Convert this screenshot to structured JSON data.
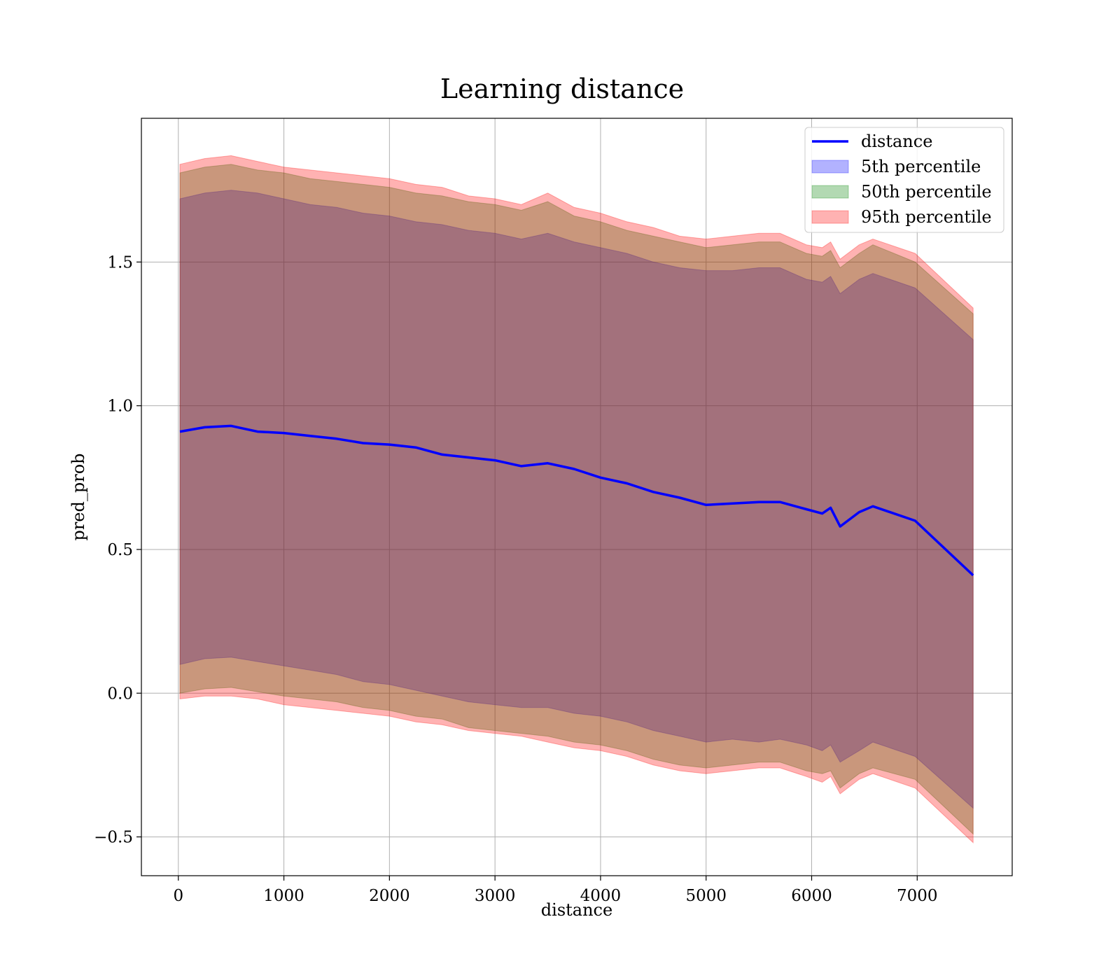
{
  "chart_data": {
    "type": "line",
    "title": "Learning distance",
    "xlabel": "distance",
    "ylabel": "pred_prob",
    "xlim": [
      -350,
      7900
    ],
    "ylim": [
      -0.635,
      2.0
    ],
    "xticks": [
      0,
      1000,
      2000,
      3000,
      4000,
      5000,
      6000,
      7000
    ],
    "xtick_labels": [
      "0",
      "1000",
      "2000",
      "3000",
      "4000",
      "5000",
      "6000",
      "7000"
    ],
    "yticks": [
      -0.5,
      0.0,
      0.5,
      1.0,
      1.5
    ],
    "ytick_labels": [
      "−0.5",
      "0.0",
      "0.5",
      "1.0",
      "1.5"
    ],
    "grid": true,
    "legend_position": "top-right",
    "legend": [
      "distance",
      "5th percentile",
      "50th percentile",
      "95th percentile"
    ],
    "x": [
      15,
      250,
      500,
      750,
      1000,
      1250,
      1500,
      1750,
      2000,
      2250,
      2500,
      2750,
      3000,
      3250,
      3500,
      3750,
      4000,
      4250,
      4500,
      4750,
      5000,
      5250,
      5500,
      5700,
      5950,
      6100,
      6180,
      6270,
      6450,
      6580,
      6980,
      7530
    ],
    "series": [
      {
        "name": "distance",
        "kind": "line",
        "color": "#0000ff",
        "values": [
          0.91,
          0.925,
          0.93,
          0.91,
          0.905,
          0.895,
          0.885,
          0.87,
          0.865,
          0.855,
          0.83,
          0.82,
          0.81,
          0.79,
          0.8,
          0.78,
          0.75,
          0.73,
          0.7,
          0.68,
          0.655,
          0.66,
          0.665,
          0.665,
          0.64,
          0.625,
          0.645,
          0.58,
          0.63,
          0.65,
          0.6,
          0.41
        ]
      },
      {
        "name": "5th percentile",
        "kind": "band",
        "color": "#0000ff",
        "lower": [
          0.1,
          0.12,
          0.125,
          0.11,
          0.095,
          0.08,
          0.065,
          0.04,
          0.03,
          0.01,
          -0.01,
          -0.03,
          -0.04,
          -0.05,
          -0.05,
          -0.07,
          -0.08,
          -0.1,
          -0.13,
          -0.15,
          -0.17,
          -0.16,
          -0.17,
          -0.16,
          -0.18,
          -0.2,
          -0.18,
          -0.24,
          -0.2,
          -0.17,
          -0.22,
          -0.4
        ],
        "upper": [
          1.72,
          1.74,
          1.75,
          1.74,
          1.72,
          1.7,
          1.69,
          1.67,
          1.66,
          1.64,
          1.63,
          1.61,
          1.6,
          1.58,
          1.6,
          1.57,
          1.55,
          1.53,
          1.5,
          1.48,
          1.47,
          1.47,
          1.48,
          1.48,
          1.44,
          1.43,
          1.45,
          1.39,
          1.44,
          1.46,
          1.41,
          1.23
        ]
      },
      {
        "name": "50th percentile",
        "kind": "band",
        "color": "#008000",
        "lower": [
          0.0,
          0.015,
          0.02,
          0.005,
          -0.01,
          -0.02,
          -0.03,
          -0.05,
          -0.06,
          -0.08,
          -0.09,
          -0.12,
          -0.13,
          -0.14,
          -0.15,
          -0.17,
          -0.18,
          -0.2,
          -0.23,
          -0.25,
          -0.26,
          -0.25,
          -0.24,
          -0.24,
          -0.27,
          -0.28,
          -0.27,
          -0.33,
          -0.28,
          -0.26,
          -0.3,
          -0.49
        ],
        "upper": [
          1.81,
          1.83,
          1.84,
          1.82,
          1.81,
          1.79,
          1.78,
          1.77,
          1.76,
          1.74,
          1.73,
          1.71,
          1.7,
          1.68,
          1.71,
          1.66,
          1.64,
          1.61,
          1.59,
          1.57,
          1.55,
          1.56,
          1.57,
          1.57,
          1.53,
          1.52,
          1.54,
          1.48,
          1.53,
          1.56,
          1.5,
          1.32
        ]
      },
      {
        "name": "95th percentile",
        "kind": "band",
        "color": "#ff0000",
        "lower": [
          -0.02,
          -0.01,
          -0.01,
          -0.02,
          -0.04,
          -0.05,
          -0.06,
          -0.07,
          -0.08,
          -0.1,
          -0.11,
          -0.13,
          -0.14,
          -0.15,
          -0.17,
          -0.19,
          -0.2,
          -0.22,
          -0.25,
          -0.27,
          -0.28,
          -0.27,
          -0.26,
          -0.26,
          -0.29,
          -0.31,
          -0.29,
          -0.35,
          -0.3,
          -0.28,
          -0.33,
          -0.52
        ],
        "upper": [
          1.84,
          1.86,
          1.87,
          1.85,
          1.83,
          1.82,
          1.81,
          1.8,
          1.79,
          1.77,
          1.76,
          1.73,
          1.72,
          1.7,
          1.74,
          1.69,
          1.67,
          1.64,
          1.62,
          1.59,
          1.58,
          1.59,
          1.6,
          1.6,
          1.56,
          1.55,
          1.57,
          1.51,
          1.56,
          1.58,
          1.53,
          1.34
        ]
      }
    ]
  }
}
